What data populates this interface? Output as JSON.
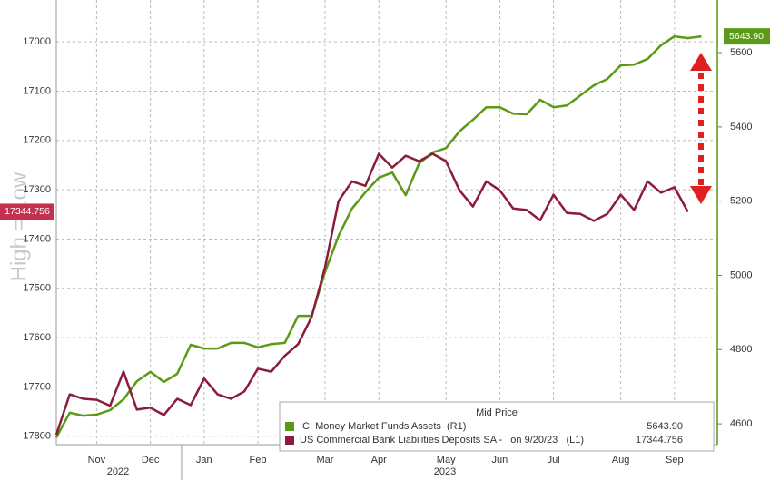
{
  "chart_data": {
    "type": "line",
    "side_label": "High = Low",
    "legend_title": "Mid Price",
    "categories": [
      null,
      null,
      null,
      "Nov",
      null,
      null,
      null,
      "Dec",
      null,
      null,
      null,
      "Jan",
      null,
      null,
      null,
      "Feb",
      null,
      null,
      null,
      null,
      "Mar",
      null,
      null,
      null,
      "Apr",
      null,
      null,
      null,
      null,
      "May",
      null,
      null,
      null,
      "Jun",
      null,
      null,
      null,
      "Jul",
      null,
      null,
      null,
      null,
      "Aug",
      null,
      null,
      null,
      "Sep",
      null,
      null
    ],
    "x_groups": [
      "2022",
      "2023"
    ],
    "series": [
      {
        "name": "ICI Money Market Funds Assets  (R1)",
        "color": "#5a9a16",
        "axis": "y2",
        "last_label": "5643.90",
        "values": [
          4563,
          4630,
          4622,
          4625,
          4637,
          4666,
          4715,
          4740,
          4713,
          4735,
          4813,
          4803,
          4803,
          4818,
          4818,
          4806,
          4815,
          4818,
          4891,
          4891,
          5009,
          5106,
          5180,
          5224,
          5263,
          5277,
          5216,
          5302,
          5331,
          5343,
          5388,
          5419,
          5453,
          5453,
          5436,
          5434,
          5473,
          5453,
          5458,
          5485,
          5512,
          5529,
          5566,
          5568,
          5583,
          5620,
          5644,
          5639,
          5643.9
        ]
      },
      {
        "name": "US Commercial Bank Liabilities Deposits SA -   on 9/20/23   (L1)",
        "color": "#8b1c3a",
        "axis": "y",
        "last_label": "17344.756",
        "values": [
          17797,
          17715,
          17724,
          17726,
          17738,
          17669,
          17746,
          17742,
          17757,
          17724,
          17737,
          17683,
          17715,
          17724,
          17709,
          17663,
          17669,
          17637,
          17613,
          17558,
          17457,
          17323,
          17283,
          17292,
          17227,
          17255,
          17231,
          17242,
          17227,
          17242,
          17301,
          17334,
          17283,
          17301,
          17338,
          17341,
          17362,
          17310,
          17347,
          17349,
          17363,
          17349,
          17310,
          17341,
          17283,
          17306,
          17295,
          17344.756,
          null
        ]
      }
    ],
    "ylim": [
      16915,
      17817
    ],
    "y_inverted": true,
    "yticks": [
      17000,
      17100,
      17200,
      17300,
      17400,
      17500,
      17600,
      17700,
      17800
    ],
    "y2lim": [
      4544,
      5742
    ],
    "y2ticks": [
      4600,
      4800,
      5000,
      5200,
      5400,
      5600
    ],
    "grid": true
  }
}
